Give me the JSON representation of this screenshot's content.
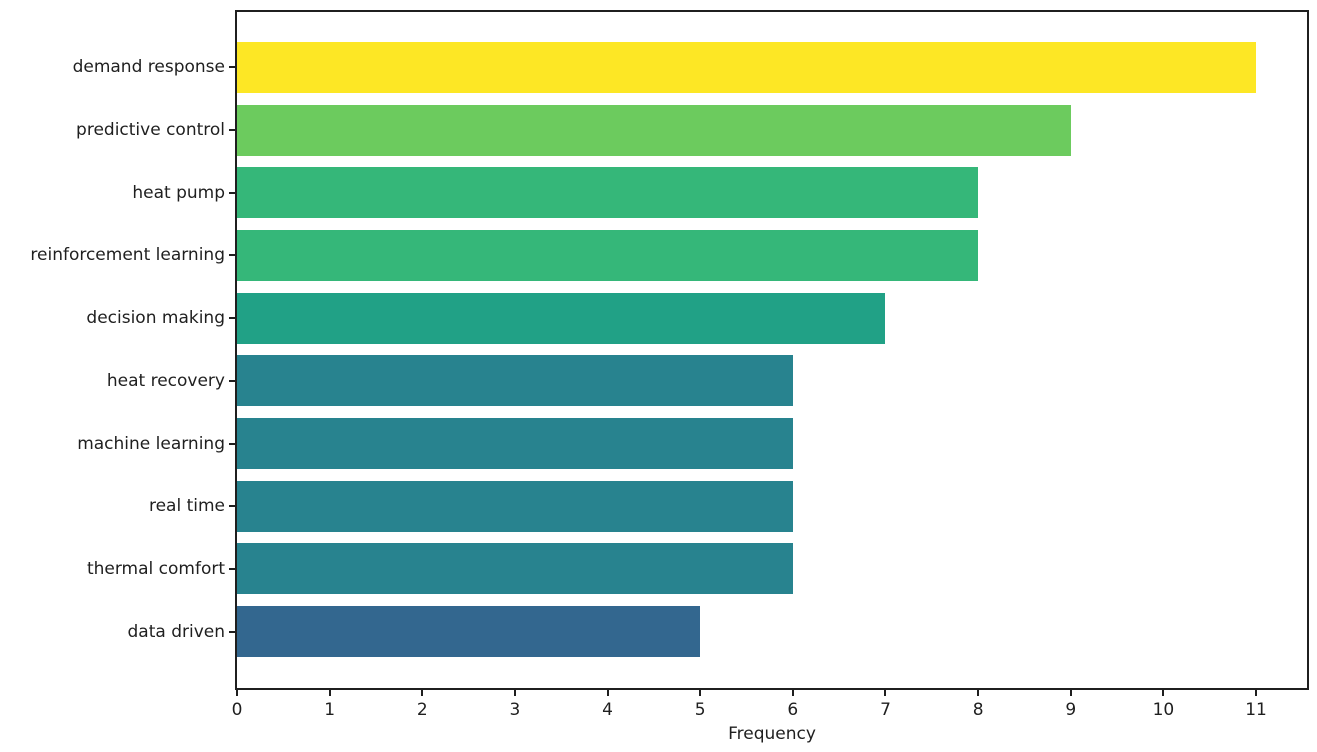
{
  "figure": {
    "background_color": "#ffffff"
  },
  "axes": {
    "spine_color": "#1f1f1f",
    "text_color": "#1f1f1f"
  },
  "chart_data": {
    "type": "bar",
    "orientation": "horizontal",
    "title": "",
    "xlabel": "Frequency",
    "ylabel": "",
    "xlim": [
      0,
      11.55
    ],
    "xticks": [
      0,
      1,
      2,
      3,
      4,
      5,
      6,
      7,
      8,
      9,
      10,
      11
    ],
    "grid": false,
    "legend": null,
    "colormap": "viridis",
    "categories": [
      "demand response",
      "predictive control",
      "heat pump",
      "reinforcement learning",
      "decision making",
      "heat recovery",
      "machine learning",
      "real time",
      "thermal comfort",
      "data driven"
    ],
    "values": [
      11,
      9,
      8,
      8,
      7,
      6,
      6,
      6,
      6,
      5
    ],
    "bar_colors": [
      "#FDE725",
      "#6CCB5E",
      "#35B779",
      "#35B779",
      "#21A186",
      "#28838F",
      "#28838F",
      "#28838F",
      "#28838F",
      "#33678F"
    ]
  }
}
